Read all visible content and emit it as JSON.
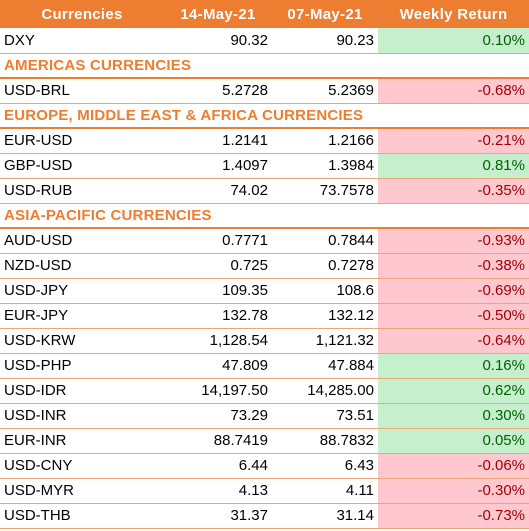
{
  "header": {
    "col1": "Currencies",
    "col2": "14-May-21",
    "col3": "07-May-21",
    "col4": "Weekly Return"
  },
  "rows": [
    {
      "type": "row",
      "pair": "DXY",
      "v1": "90.32",
      "v2": "90.23",
      "ret": "0.10%",
      "sign": "pos"
    },
    {
      "type": "section",
      "title": "AMERICAS CURRENCIES"
    },
    {
      "type": "row",
      "pair": "USD-BRL",
      "v1": "5.2728",
      "v2": "5.2369",
      "ret": "-0.68%",
      "sign": "neg"
    },
    {
      "type": "section",
      "title": "EUROPE, MIDDLE EAST & AFRICA CURRENCIES"
    },
    {
      "type": "row",
      "pair": "EUR-USD",
      "v1": "1.2141",
      "v2": "1.2166",
      "ret": "-0.21%",
      "sign": "neg"
    },
    {
      "type": "row",
      "pair": "GBP-USD",
      "v1": "1.4097",
      "v2": "1.3984",
      "ret": "0.81%",
      "sign": "pos"
    },
    {
      "type": "row",
      "pair": "USD-RUB",
      "v1": "74.02",
      "v2": "73.7578",
      "ret": "-0.35%",
      "sign": "neg"
    },
    {
      "type": "section",
      "title": "ASIA-PACIFIC CURRENCIES"
    },
    {
      "type": "row",
      "pair": "AUD-USD",
      "v1": "0.7771",
      "v2": "0.7844",
      "ret": "-0.93%",
      "sign": "neg"
    },
    {
      "type": "row",
      "pair": "NZD-USD",
      "v1": "0.725",
      "v2": "0.7278",
      "ret": "-0.38%",
      "sign": "neg"
    },
    {
      "type": "row",
      "pair": "USD-JPY",
      "v1": "109.35",
      "v2": "108.6",
      "ret": "-0.69%",
      "sign": "neg"
    },
    {
      "type": "row",
      "pair": "EUR-JPY",
      "v1": "132.78",
      "v2": "132.12",
      "ret": "-0.50%",
      "sign": "neg"
    },
    {
      "type": "row",
      "pair": "USD-KRW",
      "v1": "1,128.54",
      "v2": "1,121.32",
      "ret": "-0.64%",
      "sign": "neg"
    },
    {
      "type": "row",
      "pair": "USD-PHP",
      "v1": "47.809",
      "v2": "47.884",
      "ret": "0.16%",
      "sign": "pos"
    },
    {
      "type": "row",
      "pair": "USD-IDR",
      "v1": "14,197.50",
      "v2": "14,285.00",
      "ret": "0.62%",
      "sign": "pos"
    },
    {
      "type": "row",
      "pair": "USD-INR",
      "v1": "73.29",
      "v2": "73.51",
      "ret": "0.30%",
      "sign": "pos"
    },
    {
      "type": "row",
      "pair": "EUR-INR",
      "v1": "88.7419",
      "v2": "88.7832",
      "ret": "0.05%",
      "sign": "pos"
    },
    {
      "type": "row",
      "pair": "USD-CNY",
      "v1": "6.44",
      "v2": "6.43",
      "ret": "-0.06%",
      "sign": "neg"
    },
    {
      "type": "row",
      "pair": "USD-MYR",
      "v1": "4.13",
      "v2": "4.11",
      "ret": "-0.30%",
      "sign": "neg"
    },
    {
      "type": "row",
      "pair": "USD-THB",
      "v1": "31.37",
      "v2": "31.14",
      "ret": "-0.73%",
      "sign": "neg"
    }
  ],
  "colors": {
    "header_bg": "#ED7D31",
    "positive_bg": "#C6EFCE",
    "positive_text": "#006100",
    "negative_bg": "#FFC7CE",
    "negative_text": "#9C0006"
  }
}
